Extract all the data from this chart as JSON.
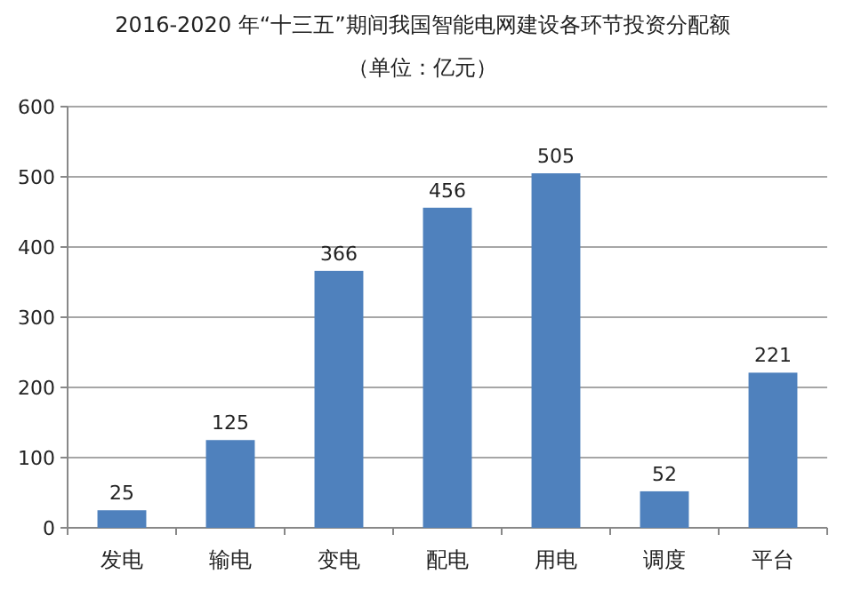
{
  "chart_data": {
    "type": "bar",
    "title": "2016-2020 年“十三五”期间我国智能电网建设各环节投资分配额",
    "subtitle": "（单位：亿元）",
    "categories": [
      "发电",
      "输电",
      "变电",
      "配电",
      "用电",
      "调度",
      "平台"
    ],
    "values": [
      25,
      125,
      366,
      456,
      505,
      52,
      221
    ],
    "color": "#4f81bd",
    "ylim": [
      0,
      600
    ],
    "yticks": [
      0,
      100,
      200,
      300,
      400,
      500,
      600
    ],
    "grid": "y",
    "data_labels": true
  }
}
